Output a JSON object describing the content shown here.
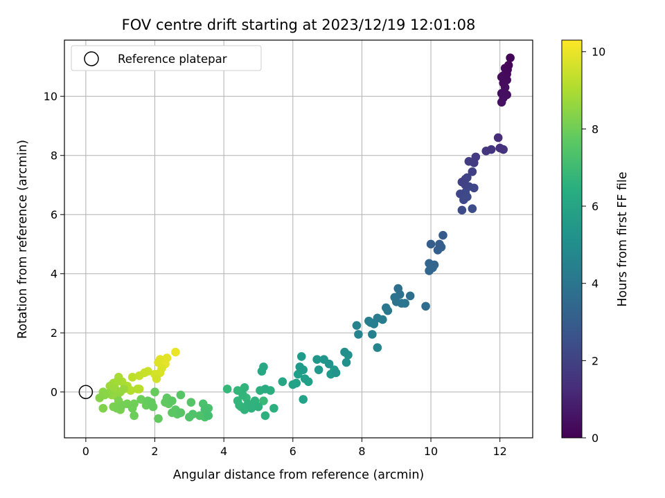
{
  "chart_data": {
    "type": "scatter",
    "title": "FOV centre drift starting at 2023/12/19 12:01:08",
    "xlabel": "Angular distance from reference (arcmin)",
    "ylabel": "Rotation from reference (arcmin)",
    "xlim": [
      -0.62,
      12.95
    ],
    "ylim": [
      -1.55,
      11.9
    ],
    "xticks": [
      0,
      2,
      4,
      6,
      8,
      10,
      12
    ],
    "yticks": [
      0,
      2,
      4,
      6,
      8,
      10
    ],
    "grid": true,
    "legend": {
      "placement": "upper-left",
      "entries": [
        "Reference platepar"
      ]
    },
    "reference_point": {
      "x": 0,
      "y": 0,
      "marker": "open-circle",
      "color": "#000000"
    },
    "colorbar": {
      "label": "Hours from first FF file",
      "range": [
        0,
        10.3
      ],
      "ticks": [
        0,
        2,
        4,
        6,
        8,
        10
      ],
      "colormap": "viridis"
    },
    "points_x_y_hours": [
      [
        12.3,
        11.3,
        0.1
      ],
      [
        12.25,
        11.05,
        0.15
      ],
      [
        12.22,
        10.9,
        0.2
      ],
      [
        12.15,
        10.95,
        0.22
      ],
      [
        12.2,
        10.75,
        0.25
      ],
      [
        12.1,
        10.7,
        0.28
      ],
      [
        12.05,
        10.65,
        0.3
      ],
      [
        12.2,
        10.55,
        0.32
      ],
      [
        12.1,
        10.45,
        0.35
      ],
      [
        12.15,
        10.3,
        0.38
      ],
      [
        12.05,
        10.1,
        0.4
      ],
      [
        12.2,
        10.05,
        0.42
      ],
      [
        12.1,
        9.95,
        0.44
      ],
      [
        12.05,
        9.8,
        0.46
      ],
      [
        11.95,
        8.6,
        1.35
      ],
      [
        12.0,
        8.25,
        1.45
      ],
      [
        12.1,
        8.2,
        1.5
      ],
      [
        11.75,
        8.2,
        1.55
      ],
      [
        11.6,
        8.15,
        1.6
      ],
      [
        11.3,
        7.95,
        1.75
      ],
      [
        11.25,
        7.75,
        1.8
      ],
      [
        11.1,
        7.8,
        1.85
      ],
      [
        11.2,
        7.45,
        1.95
      ],
      [
        10.9,
        7.1,
        2.0
      ],
      [
        11.0,
        7.2,
        2.05
      ],
      [
        11.05,
        7.25,
        2.1
      ],
      [
        11.0,
        7.0,
        2.1
      ],
      [
        11.1,
        6.95,
        2.15
      ],
      [
        11.25,
        6.9,
        2.2
      ],
      [
        10.85,
        6.7,
        2.2
      ],
      [
        11.0,
        6.75,
        2.25
      ],
      [
        11.05,
        6.6,
        2.25
      ],
      [
        10.95,
        6.5,
        2.3
      ],
      [
        10.9,
        6.15,
        2.35
      ],
      [
        11.2,
        6.2,
        2.4
      ],
      [
        10.35,
        5.3,
        2.9
      ],
      [
        10.25,
        5.0,
        3.0
      ],
      [
        10.0,
        5.0,
        3.05
      ],
      [
        10.2,
        4.8,
        3.1
      ],
      [
        10.3,
        4.9,
        3.1
      ],
      [
        10.1,
        4.3,
        3.3
      ],
      [
        9.95,
        4.35,
        3.35
      ],
      [
        10.05,
        4.2,
        3.4
      ],
      [
        9.95,
        4.1,
        3.4
      ],
      [
        9.4,
        3.25,
        3.75
      ],
      [
        9.05,
        3.5,
        3.8
      ],
      [
        9.1,
        3.3,
        3.85
      ],
      [
        8.95,
        3.2,
        3.9
      ],
      [
        9.0,
        3.05,
        3.95
      ],
      [
        9.15,
        3.0,
        4.0
      ],
      [
        9.25,
        3.0,
        4.0
      ],
      [
        9.85,
        2.9,
        3.6
      ],
      [
        8.7,
        2.85,
        4.1
      ],
      [
        8.75,
        2.75,
        4.15
      ],
      [
        8.45,
        2.5,
        4.3
      ],
      [
        8.6,
        2.45,
        4.3
      ],
      [
        8.2,
        2.4,
        4.4
      ],
      [
        8.35,
        2.3,
        4.45
      ],
      [
        8.25,
        2.35,
        4.45
      ],
      [
        7.85,
        2.25,
        4.6
      ],
      [
        7.9,
        1.95,
        4.65
      ],
      [
        8.3,
        1.95,
        4.55
      ],
      [
        8.45,
        1.5,
        4.7
      ],
      [
        7.5,
        1.35,
        5.1
      ],
      [
        7.6,
        1.25,
        5.15
      ],
      [
        7.55,
        1.0,
        5.2
      ],
      [
        7.25,
        0.65,
        5.3
      ],
      [
        7.05,
        0.95,
        5.3
      ],
      [
        6.9,
        1.1,
        5.4
      ],
      [
        6.7,
        1.1,
        5.45
      ],
      [
        6.75,
        0.75,
        5.5
      ],
      [
        7.1,
        0.6,
        5.55
      ],
      [
        7.2,
        0.75,
        5.55
      ],
      [
        6.25,
        1.2,
        5.6
      ],
      [
        6.2,
        0.85,
        5.65
      ],
      [
        6.3,
        0.75,
        5.7
      ],
      [
        6.15,
        0.6,
        5.75
      ],
      [
        6.35,
        0.45,
        5.8
      ],
      [
        6.45,
        0.35,
        5.85
      ],
      [
        6.1,
        0.3,
        5.9
      ],
      [
        6.0,
        0.25,
        5.95
      ],
      [
        6.3,
        -0.25,
        5.9
      ],
      [
        5.7,
        0.35,
        6.1
      ],
      [
        5.15,
        0.85,
        6.15
      ],
      [
        5.1,
        0.7,
        6.2
      ],
      [
        5.2,
        0.1,
        6.35
      ],
      [
        5.35,
        0.05,
        6.4
      ],
      [
        5.05,
        0.05,
        6.45
      ],
      [
        5.45,
        -0.55,
        6.5
      ],
      [
        5.2,
        -0.8,
        6.5
      ],
      [
        5.0,
        -0.5,
        6.55
      ],
      [
        4.9,
        -0.3,
        6.6
      ],
      [
        4.8,
        -0.55,
        6.6
      ],
      [
        4.7,
        -0.4,
        6.65
      ],
      [
        4.6,
        -0.6,
        6.7
      ],
      [
        4.6,
        0.15,
        6.7
      ],
      [
        4.55,
        -0.1,
        6.75
      ],
      [
        4.45,
        -0.45,
        6.75
      ],
      [
        4.4,
        -0.3,
        6.8
      ],
      [
        4.4,
        0.05,
        6.8
      ],
      [
        4.1,
        0.1,
        6.85
      ],
      [
        4.65,
        -0.2,
        6.9
      ],
      [
        4.5,
        -0.5,
        6.9
      ],
      [
        5.15,
        -0.3,
        6.95
      ],
      [
        3.55,
        -0.8,
        7.2
      ],
      [
        3.45,
        -0.6,
        7.25
      ],
      [
        3.55,
        -0.55,
        7.3
      ],
      [
        3.4,
        -0.4,
        7.3
      ],
      [
        3.45,
        -0.85,
        7.35
      ],
      [
        3.3,
        -0.8,
        7.4
      ],
      [
        3.1,
        -0.75,
        7.4
      ],
      [
        3.0,
        -0.85,
        7.45
      ],
      [
        3.05,
        -0.35,
        7.5
      ],
      [
        2.75,
        -0.7,
        7.55
      ],
      [
        2.75,
        -0.1,
        7.55
      ],
      [
        2.65,
        -0.75,
        7.6
      ],
      [
        2.6,
        -0.6,
        7.6
      ],
      [
        2.5,
        -0.7,
        7.65
      ],
      [
        2.5,
        -0.3,
        7.65
      ],
      [
        2.4,
        -0.4,
        7.7
      ],
      [
        2.35,
        -0.2,
        7.7
      ],
      [
        2.3,
        -0.35,
        7.75
      ],
      [
        2.1,
        -0.9,
        7.75
      ],
      [
        1.95,
        -0.5,
        7.8
      ],
      [
        1.9,
        -0.35,
        7.8
      ],
      [
        1.8,
        -0.3,
        7.85
      ],
      [
        2.0,
        0.0,
        7.85
      ],
      [
        1.75,
        -0.45,
        7.9
      ],
      [
        1.6,
        -0.25,
        7.95
      ],
      [
        1.4,
        -0.8,
        7.95
      ],
      [
        1.35,
        -0.55,
        8.0
      ],
      [
        1.4,
        -0.4,
        8.05
      ],
      [
        1.2,
        -0.4,
        8.1
      ],
      [
        1.05,
        -0.45,
        8.1
      ],
      [
        0.9,
        -0.55,
        8.15
      ],
      [
        0.8,
        -0.5,
        8.2
      ],
      [
        1.0,
        -0.6,
        8.2
      ],
      [
        0.95,
        -0.3,
        8.25
      ],
      [
        0.5,
        -0.55,
        8.3
      ],
      [
        0.4,
        -0.2,
        8.4
      ],
      [
        0.55,
        -0.1,
        8.45
      ],
      [
        0.5,
        0.0,
        8.5
      ],
      [
        0.65,
        -0.05,
        8.55
      ],
      [
        0.75,
        -0.1,
        8.6
      ],
      [
        0.9,
        -0.15,
        8.6
      ],
      [
        1.0,
        0.0,
        8.65
      ],
      [
        1.1,
        0.1,
        8.7
      ],
      [
        0.85,
        0.1,
        8.75
      ],
      [
        0.7,
        0.2,
        8.8
      ],
      [
        0.8,
        0.3,
        8.85
      ],
      [
        0.9,
        0.35,
        8.9
      ],
      [
        0.95,
        0.5,
        8.95
      ],
      [
        1.05,
        0.35,
        9.0
      ],
      [
        1.2,
        0.2,
        9.05
      ],
      [
        1.3,
        0.05,
        9.1
      ],
      [
        1.5,
        0.1,
        9.15
      ],
      [
        1.55,
        0.1,
        9.2
      ],
      [
        1.35,
        0.5,
        9.3
      ],
      [
        1.55,
        0.55,
        9.4
      ],
      [
        1.7,
        0.65,
        9.45
      ],
      [
        1.8,
        0.7,
        9.5
      ],
      [
        2.05,
        0.45,
        9.6
      ],
      [
        2.0,
        0.6,
        9.65
      ],
      [
        2.15,
        0.65,
        9.7
      ],
      [
        2.2,
        0.8,
        9.75
      ],
      [
        2.1,
        1.0,
        9.8
      ],
      [
        2.15,
        1.1,
        9.85
      ],
      [
        2.35,
        1.15,
        9.9
      ],
      [
        2.3,
        0.95,
        9.95
      ],
      [
        2.6,
        1.35,
        10.0
      ]
    ]
  }
}
